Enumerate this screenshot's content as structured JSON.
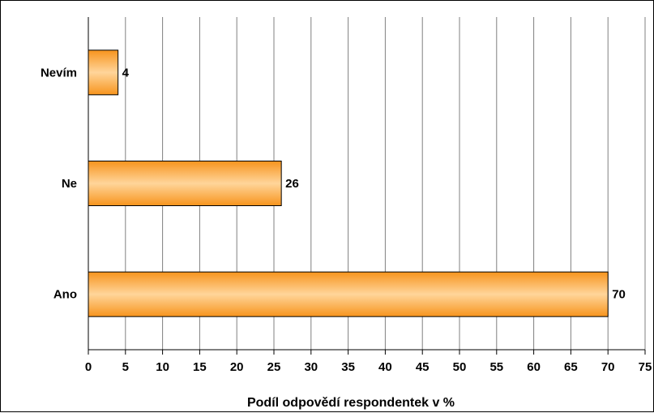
{
  "chart_data": {
    "type": "bar",
    "orientation": "horizontal",
    "categories": [
      "Nevím",
      "Ne",
      "Ano"
    ],
    "values": [
      4,
      26,
      70
    ],
    "value_labels": [
      "4",
      "26",
      "70"
    ],
    "xlabel": "Podíl odpovědí respondentek v %",
    "ylabel": "",
    "xlim": [
      0,
      75
    ],
    "xticks": [
      "0",
      "5",
      "10",
      "15",
      "20",
      "25",
      "30",
      "35",
      "40",
      "45",
      "50",
      "55",
      "60",
      "65",
      "70",
      "75"
    ],
    "grid": "vertical",
    "legend": "none",
    "colors": {
      "bar_light": "#ffd59a",
      "bar_mid": "#ffb35a",
      "bar_dark": "#f7941d",
      "bar_stroke": "#000000",
      "grid": "#808080"
    }
  }
}
